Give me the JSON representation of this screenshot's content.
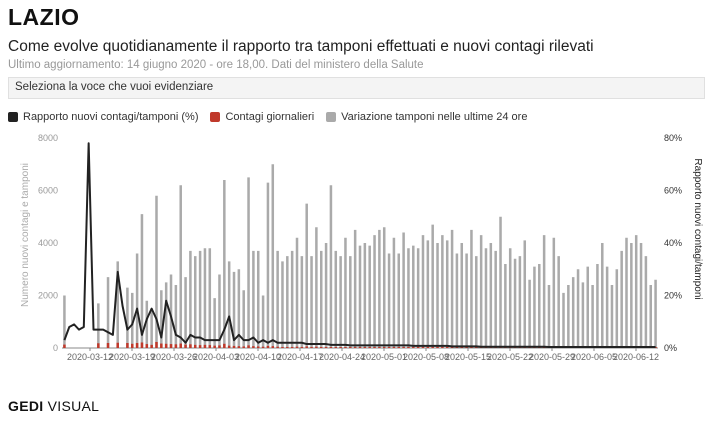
{
  "header": {
    "title": "LAZIO",
    "subtitle": "Come evolve quotidianamente il rapporto tra tamponi effettuati e nuovi contagi rilevati",
    "updated": "Ultimo aggiornamento: 14 giugno 2020 - ore 18,00. Dati del ministero della Salute"
  },
  "selector": {
    "placeholder": "Seleziona la voce che vuoi evidenziare"
  },
  "legend": [
    {
      "label": "Rapporto nuovi contagi/tamponi (%)",
      "color": "#222222"
    },
    {
      "label": "Contagi giornalieri",
      "color": "#c0392b"
    },
    {
      "label": "Variazione tamponi nelle ultime 24 ore",
      "color": "#aaaaaa"
    }
  ],
  "brand": {
    "gedi": "GEDI",
    "visual": "VISUAL"
  },
  "chart_data": {
    "type": "bar",
    "x_tick_labels": [
      "2020-03-12",
      "2020-03-19",
      "2020-03-26",
      "2020-04-03",
      "2020-04-10",
      "2020-04-17",
      "2020-04-24",
      "2020-05-01",
      "2020-05-08",
      "2020-05-15",
      "2020-05-22",
      "2020-05-29",
      "2020-06-05",
      "2020-06-12"
    ],
    "ylabel": "Numero nuovi contagi e tamponi",
    "y2label": "Rapporto nuovi contagi/tamponi",
    "y_ticks": [
      "0",
      "2000",
      "4000",
      "6000",
      "8000"
    ],
    "y2_ticks": [
      "0%",
      "20%",
      "40%",
      "60%",
      "80%"
    ],
    "ylim": [
      0,
      8000
    ],
    "y2lim": [
      0,
      80
    ],
    "grid": false,
    "legend_position": "top",
    "series": [
      {
        "name": "Variazione tamponi nelle ultime 24 ore",
        "kind": "bar",
        "color": "#aaaaaa",
        "values": [
          2000,
          0,
          0,
          0,
          0,
          0,
          0,
          1700,
          0,
          2700,
          0,
          3300,
          0,
          2300,
          2100,
          3600,
          5100,
          1800,
          1500,
          5800,
          2200,
          2500,
          2800,
          2400,
          6200,
          2700,
          3700,
          3500,
          3700,
          3800,
          3800,
          1900,
          2800,
          6400,
          3300,
          2900,
          3000,
          2200,
          6500,
          3700,
          3700,
          2000,
          6300,
          7000,
          3700,
          3300,
          3500,
          3700,
          4200,
          3500,
          5500,
          3500,
          4600,
          3700,
          4000,
          6200,
          3700,
          3500,
          4200,
          3500,
          4500,
          3900,
          4000,
          3900,
          4300,
          4500,
          4600,
          3600,
          4200,
          3600,
          4400,
          3800,
          3900,
          3800,
          4300,
          4100,
          4700,
          4000,
          4300,
          4100,
          4500,
          3600,
          4000,
          3600,
          4500,
          3500,
          4300,
          3800,
          4000,
          3700,
          5000,
          3200,
          3800,
          3400,
          3500,
          4100,
          2600,
          3100,
          3200,
          4300,
          2400,
          4200,
          3500,
          2100,
          2400,
          2700,
          3000,
          2500,
          3100,
          2400,
          3200,
          4000,
          3100,
          2400,
          3000,
          3700,
          4200,
          4000,
          4300,
          4000,
          3500,
          2400,
          2600
        ],
        "note_values_are_daily_estimates": false
      },
      {
        "name": "Contagi giornalieri",
        "kind": "bar",
        "color": "#c0392b",
        "values": [
          130,
          0,
          0,
          0,
          0,
          0,
          0,
          180,
          0,
          190,
          0,
          200,
          0,
          190,
          160,
          190,
          210,
          150,
          120,
          230,
          170,
          160,
          150,
          140,
          170,
          130,
          140,
          120,
          110,
          120,
          110,
          90,
          100,
          160,
          90,
          80,
          70,
          60,
          100,
          70,
          60,
          50,
          80,
          70,
          50,
          40,
          40,
          40,
          50,
          40,
          60,
          40,
          50,
          30,
          30,
          40,
          30,
          30,
          30,
          20,
          30,
          20,
          20,
          20,
          20,
          20,
          20,
          20,
          20,
          15,
          15,
          15,
          15,
          15,
          15,
          15,
          15,
          15,
          15,
          15,
          10,
          10,
          10,
          10,
          10,
          10,
          10,
          10,
          10,
          10,
          10,
          10,
          10,
          10,
          10,
          10,
          10,
          10,
          10,
          10,
          10,
          10,
          10,
          10,
          10,
          10,
          10,
          10,
          10,
          10,
          10,
          10,
          10,
          10,
          10,
          10,
          10,
          10,
          10,
          10,
          10,
          10,
          10
        ]
      },
      {
        "name": "Rapporto nuovi contagi/tamponi (%)",
        "kind": "line",
        "color": "#222222",
        "values": [
          3,
          8,
          9,
          7,
          8,
          78,
          7,
          7,
          7,
          6,
          5,
          29,
          16,
          7,
          9,
          15,
          5,
          11,
          15,
          11,
          4,
          18,
          12,
          5,
          4,
          2,
          5,
          4,
          4,
          3,
          3,
          3,
          3,
          7,
          12,
          3,
          5,
          3,
          3,
          4,
          2,
          3,
          2,
          3,
          2,
          2,
          2,
          2,
          2,
          2,
          1.5,
          1.5,
          1.5,
          1.5,
          1.5,
          1.2,
          1.2,
          1.2,
          1.2,
          1,
          1,
          1,
          1,
          1,
          1,
          1,
          1,
          1,
          1,
          1,
          1,
          1,
          0.8,
          0.8,
          0.8,
          0.8,
          0.8,
          0.8,
          0.8,
          0.8,
          0.6,
          0.6,
          0.6,
          0.6,
          0.6,
          0.6,
          0.5,
          0.5,
          0.5,
          0.5,
          0.5,
          0.5,
          0.5,
          0.5,
          0.5,
          0.5,
          0.5,
          0.5,
          0.5,
          0.5,
          0.4,
          0.4,
          0.4,
          0.4,
          0.4,
          0.4,
          0.4,
          0.4,
          0.4,
          0.4,
          0.4,
          0.4,
          0.4,
          0.4,
          0.4,
          0.4,
          0.4,
          0.4,
          0.4,
          0.4,
          0.4,
          0.4,
          0.4
        ]
      }
    ]
  }
}
